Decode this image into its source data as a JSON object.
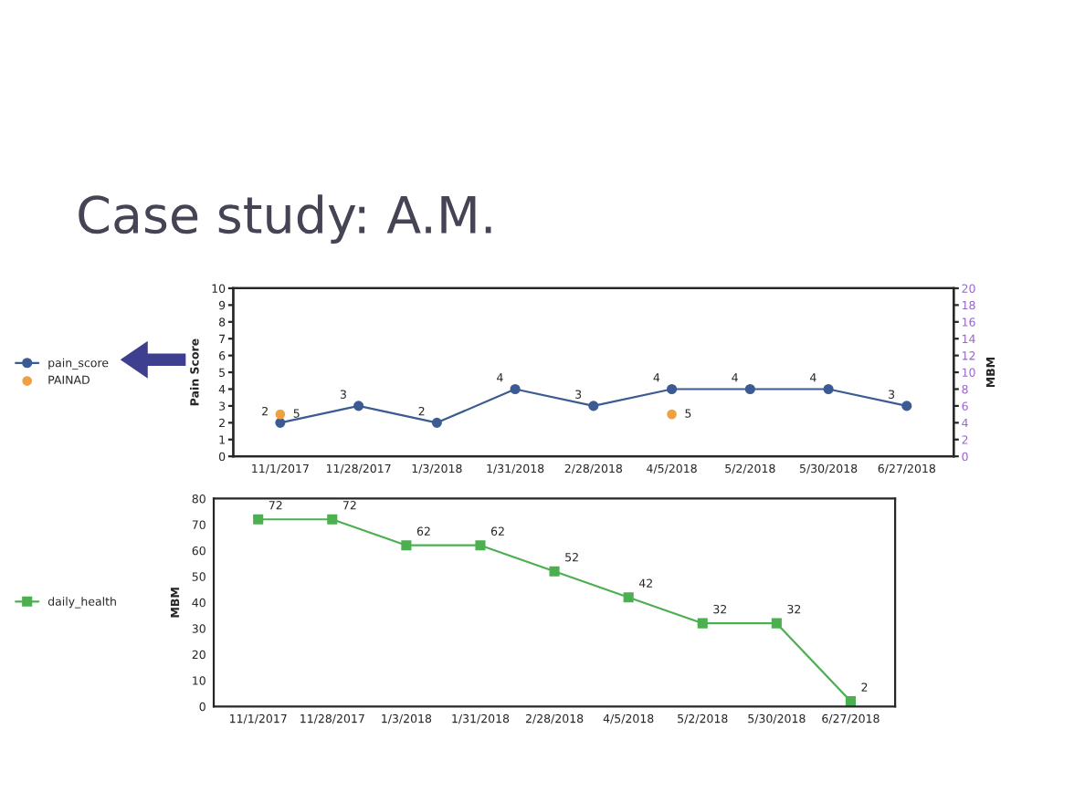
{
  "chart_data": [
    {
      "type": "line",
      "title": "Case study: A.M.",
      "ylabel": "Pain Score",
      "y2label": "MBM",
      "categories": [
        "11/1/2017",
        "11/28/2017",
        "1/3/2018",
        "1/31/2018",
        "2/28/2018",
        "4/5/2018",
        "5/2/2018",
        "5/30/2018",
        "6/27/2018"
      ],
      "series": [
        {
          "name": "pain_score",
          "color": "#3b5b92",
          "values": [
            2,
            3,
            2,
            4,
            3,
            4,
            4,
            4,
            3
          ]
        },
        {
          "name": "PAINAD",
          "type": "scatter",
          "axis": "y2",
          "color": "#f0a040",
          "values": [
            5,
            null,
            null,
            null,
            null,
            5,
            null,
            null,
            null
          ]
        }
      ],
      "ylim": [
        0,
        10
      ],
      "yticks": [
        0,
        1,
        2,
        3,
        4,
        5,
        6,
        7,
        8,
        9,
        10
      ],
      "y2lim": [
        0,
        20
      ],
      "y2ticks": [
        0,
        2,
        4,
        6,
        8,
        10,
        12,
        14,
        16,
        18,
        20
      ],
      "data_labels": true,
      "legend": "left",
      "marker": "circle",
      "grid": false
    },
    {
      "type": "line",
      "ylabel": "MBM",
      "categories": [
        "11/1/2017",
        "11/28/2017",
        "1/3/2018",
        "1/31/2018",
        "2/28/2018",
        "4/5/2018",
        "5/2/2018",
        "5/30/2018",
        "6/27/2018"
      ],
      "series": [
        {
          "name": "daily_health",
          "color": "#4caf50",
          "values": [
            72,
            72,
            62,
            62,
            52,
            42,
            32,
            32,
            2
          ]
        }
      ],
      "ylim": [
        0,
        80
      ],
      "yticks": [
        0,
        10,
        20,
        30,
        40,
        50,
        60,
        70,
        80
      ],
      "data_labels": true,
      "legend": "left",
      "marker": "square",
      "grid": false
    }
  ]
}
